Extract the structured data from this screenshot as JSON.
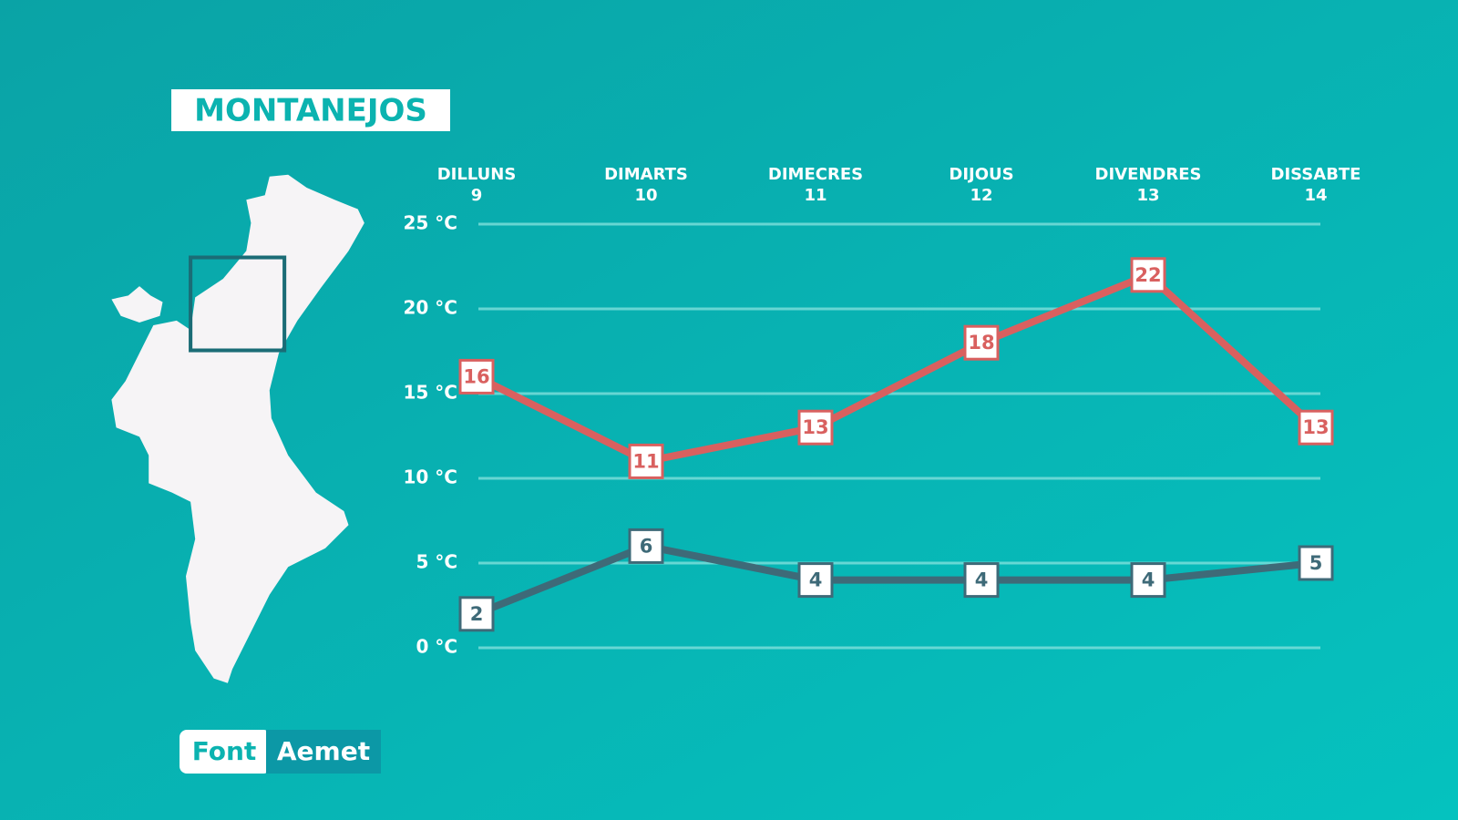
{
  "title": "MONTANEJOS",
  "source": {
    "label": "Font",
    "name": "Aemet"
  },
  "chart_data": {
    "type": "line",
    "categories": [
      "DILLUNS",
      "DIMARTS",
      "DIMECRES",
      "DIJOUS",
      "DIVENDRES",
      "DISSABTE"
    ],
    "dates": [
      9,
      10,
      11,
      12,
      13,
      14
    ],
    "ylim": [
      0,
      25
    ],
    "yticks": [
      {
        "value": 0,
        "label": "0 °C"
      },
      {
        "value": 5,
        "label": "5 °C"
      },
      {
        "value": 10,
        "label": "10 °C"
      },
      {
        "value": 15,
        "label": "15 °C"
      },
      {
        "value": 20,
        "label": "20 °C"
      },
      {
        "value": 25,
        "label": "25 °C"
      }
    ],
    "grid": true,
    "series": [
      {
        "color": "#d9605f",
        "values": [
          16,
          11,
          13,
          18,
          22,
          13
        ]
      },
      {
        "color": "#3e6a78",
        "values": [
          2,
          6,
          4,
          4,
          4,
          5
        ]
      }
    ]
  }
}
